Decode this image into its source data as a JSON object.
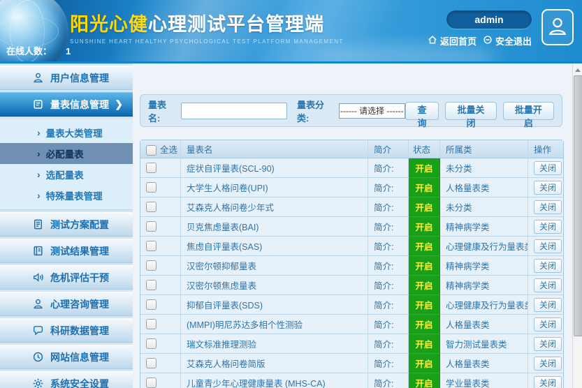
{
  "header": {
    "title_highlight": "阳光心健",
    "title_rest": "心理测试平台管理端",
    "subtitle": "SUNSHINE HEART HEALTHY PSYCHOLOGICAL TEST PLATFORM MANAGEMENT",
    "online_label": "在线人数：",
    "online_count": "1",
    "username": "admin",
    "home_label": "返回首页",
    "logout_label": "安全退出"
  },
  "sidebar": {
    "items": [
      "用户信息管理",
      "量表信息管理",
      "测试方案配置",
      "测试结果管理",
      "危机评估干预",
      "心理咨询管理",
      "科研数据管理",
      "网站信息管理",
      "系统安全设置"
    ],
    "active_item": "量表信息管理",
    "submenu": [
      "量表大类管理",
      "必配量表",
      "选配量表",
      "特殊量表管理"
    ],
    "selected_submenu": "必配量表",
    "chevron": "›",
    "active_arrow": "❯"
  },
  "search": {
    "name_label": "量表名:",
    "category_label": "量表分类:",
    "category_value": "------ 请选择 ------",
    "buttons": [
      "查询",
      "批量关闭",
      "批量开启"
    ]
  },
  "table": {
    "select_all_label": "全选",
    "columns": [
      "量表名",
      "简介",
      "状态",
      "所属类",
      "操作"
    ],
    "intro_text": "简介:",
    "status_on": "开启",
    "action_close": "关闭",
    "rows": [
      {
        "name": "症状自评量表(SCL-90)",
        "category": "未分类"
      },
      {
        "name": "大学生人格问卷(UPI)",
        "category": "人格量表类"
      },
      {
        "name": "艾森克人格问卷少年式",
        "category": "未分类"
      },
      {
        "name": "贝克焦虑量表(BAI)",
        "category": "精神病学类"
      },
      {
        "name": "焦虑自评量表(SAS)",
        "category": "心理健康及行为量表类"
      },
      {
        "name": "汉密尔顿抑郁量表",
        "category": "精神病学类"
      },
      {
        "name": "汉密尔顿焦虑量表",
        "category": "精神病学类"
      },
      {
        "name": "抑郁自评量表(SDS)",
        "category": "心理健康及行为量表类"
      },
      {
        "name": "(MMPI)明尼苏达多相个性测验",
        "category": "人格量表类"
      },
      {
        "name": "瑞文标准推理测验",
        "category": "智力测试量表类"
      },
      {
        "name": "艾森克人格问卷简版",
        "category": "人格量表类"
      },
      {
        "name": "儿童青少年心理健康量表 (MHS-CA)",
        "category": "学业量表类"
      }
    ]
  },
  "colors": {
    "accent_blue": "#1b84cc",
    "status_green": "#18a018",
    "status_text_yellow": "#ffee3c",
    "title_yellow": "#ffd800"
  }
}
